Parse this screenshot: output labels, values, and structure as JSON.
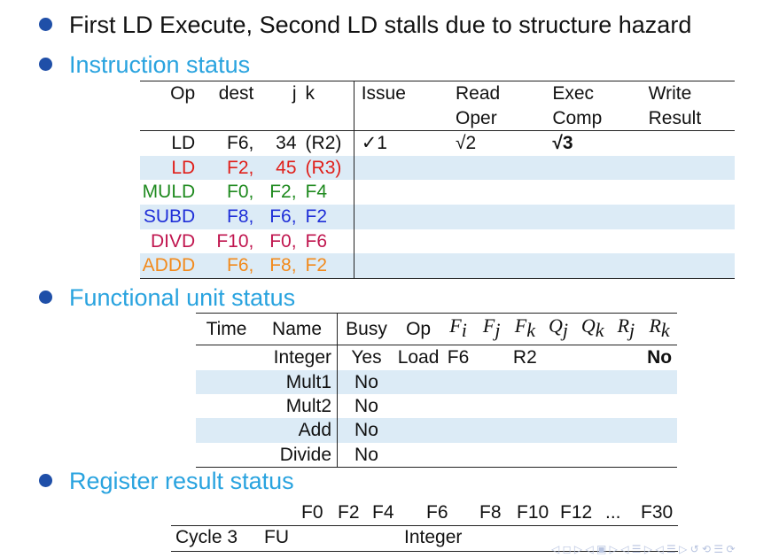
{
  "bullets": {
    "headline": "First LD Execute, Second LD stalls due to structure hazard",
    "instruction_status": "Instruction status",
    "functional_unit_status": "Functional unit status",
    "register_result_status": "Register result status"
  },
  "instruction_table": {
    "headers": {
      "op": "Op",
      "dest": "dest",
      "j": "j",
      "k": "k",
      "issue": "Issue",
      "read": "Read",
      "oper": "Oper",
      "exec": "Exec",
      "comp": "Comp",
      "write": "Write",
      "result": "Result"
    },
    "rows": [
      {
        "op": "LD",
        "dest": "F6,",
        "j": "34",
        "k": "(R2)",
        "issue": "✓1",
        "read": "√2",
        "exec": "√3",
        "write": "",
        "color": "#111111"
      },
      {
        "op": "LD",
        "dest": "F2,",
        "j": "45",
        "k": "(R3)",
        "issue": "",
        "read": "",
        "exec": "",
        "write": "",
        "color": "#e0201b"
      },
      {
        "op": "MULD",
        "dest": "F0,",
        "j": "F2,",
        "k": "F4",
        "issue": "",
        "read": "",
        "exec": "",
        "write": "",
        "color": "#1f8a1f"
      },
      {
        "op": "SUBD",
        "dest": "F8,",
        "j": "F6,",
        "k": "F2",
        "issue": "",
        "read": "",
        "exec": "",
        "write": "",
        "color": "#1f2fd8"
      },
      {
        "op": "DIVD",
        "dest": "F10,",
        "j": "F0,",
        "k": "F6",
        "issue": "",
        "read": "",
        "exec": "",
        "write": "",
        "color": "#c0164f"
      },
      {
        "op": "ADDD",
        "dest": "F6,",
        "j": "F8,",
        "k": "F2",
        "issue": "",
        "read": "",
        "exec": "",
        "write": "",
        "color": "#f28a1c"
      }
    ]
  },
  "fu_table": {
    "headers": {
      "time": "Time",
      "name": "Name",
      "busy": "Busy",
      "op": "Op"
    },
    "rows": [
      {
        "name": "Integer",
        "busy": "Yes",
        "op": "Load",
        "fi": "F6",
        "fj": "",
        "fk": "R2",
        "qj": "",
        "qk": "",
        "rj": "",
        "rk": "No"
      },
      {
        "name": "Mult1",
        "busy": "No",
        "op": "",
        "fi": "",
        "fj": "",
        "fk": "",
        "qj": "",
        "qk": "",
        "rj": "",
        "rk": ""
      },
      {
        "name": "Mult2",
        "busy": "No",
        "op": "",
        "fi": "",
        "fj": "",
        "fk": "",
        "qj": "",
        "qk": "",
        "rj": "",
        "rk": ""
      },
      {
        "name": "Add",
        "busy": "No",
        "op": "",
        "fi": "",
        "fj": "",
        "fk": "",
        "qj": "",
        "qk": "",
        "rj": "",
        "rk": ""
      },
      {
        "name": "Divide",
        "busy": "No",
        "op": "",
        "fi": "",
        "fj": "",
        "fk": "",
        "qj": "",
        "qk": "",
        "rj": "",
        "rk": ""
      }
    ]
  },
  "register_status": {
    "registers": [
      "F0",
      "F2",
      "F4",
      "F6",
      "F8",
      "F10",
      "F12",
      "...",
      "F30"
    ],
    "cycle_label": "Cycle 3",
    "fu_label": "FU",
    "f6_unit": "Integer"
  },
  "colors": {
    "bullet": "#1f4fa8",
    "heading": "#29a3df",
    "shade": "#dcebf6"
  }
}
